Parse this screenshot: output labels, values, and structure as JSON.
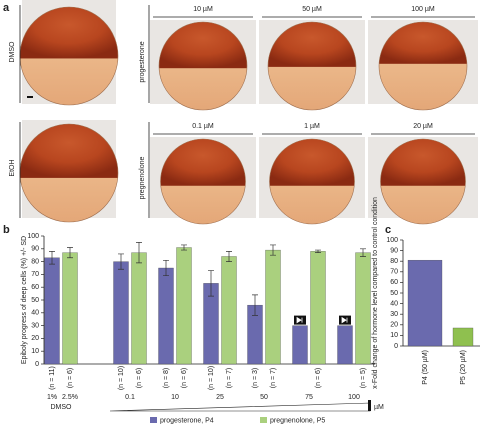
{
  "panel_a": {
    "label": "a",
    "row1_label": "DMSO",
    "row1_treatment": "progesterone",
    "row1_doses": [
      "10 µM",
      "50 µM",
      "100 µM"
    ],
    "row2_label": "EtOH",
    "row2_treatment": "pregnenolone",
    "row2_doses": [
      "0.1 µM",
      "1 µM",
      "20 µM"
    ]
  },
  "chart_data": [
    {
      "type": "bar",
      "label": "b",
      "ylabel": "Epiboly progress of deep cells (%) +/- SD",
      "categories": [
        "DMSO",
        "0.1",
        "10",
        "25",
        "50",
        "75",
        "100"
      ],
      "control_labels": [
        "1%",
        "2.5%"
      ],
      "unit": "µM",
      "ylim": [
        0,
        100
      ],
      "yticks": [
        0,
        10,
        20,
        30,
        40,
        50,
        60,
        70,
        80,
        90,
        100
      ],
      "series": [
        {
          "name": "progesterone, P4",
          "color": "#6a6aae",
          "values": [
            83,
            80,
            75,
            63,
            46,
            30,
            30
          ],
          "errors": [
            5,
            6,
            6,
            10,
            8,
            null,
            null
          ],
          "n_labels": [
            "(n = 11)",
            "(n = 10)",
            "(n = 8)",
            "(n = 10)",
            "(n = 3)",
            null,
            null
          ]
        },
        {
          "name": "pregnenolone, P5",
          "color": "#aad07e",
          "values": [
            87,
            87,
            91,
            84,
            89,
            88,
            87
          ],
          "errors": [
            4,
            8,
            2,
            4,
            4,
            1,
            3
          ],
          "n_labels": [
            "(n = 6)",
            "(n = 6)",
            "(n = 6)",
            "(n = 7)",
            "(n = 7)",
            "(n = 6)",
            "(n = 5)"
          ]
        }
      ]
    },
    {
      "type": "bar",
      "label": "c",
      "ylabel": "x-Fold change of hormone level compared to control condition",
      "categories": [
        "P4 (50 µM)",
        "P5 (20 µM)"
      ],
      "values": [
        81,
        17
      ],
      "colors": [
        "#6a6aae",
        "#8fc04f"
      ],
      "ylim": [
        0,
        100
      ],
      "yticks": [
        0,
        10,
        20,
        30,
        40,
        50,
        60,
        70,
        80,
        90,
        100
      ]
    }
  ]
}
